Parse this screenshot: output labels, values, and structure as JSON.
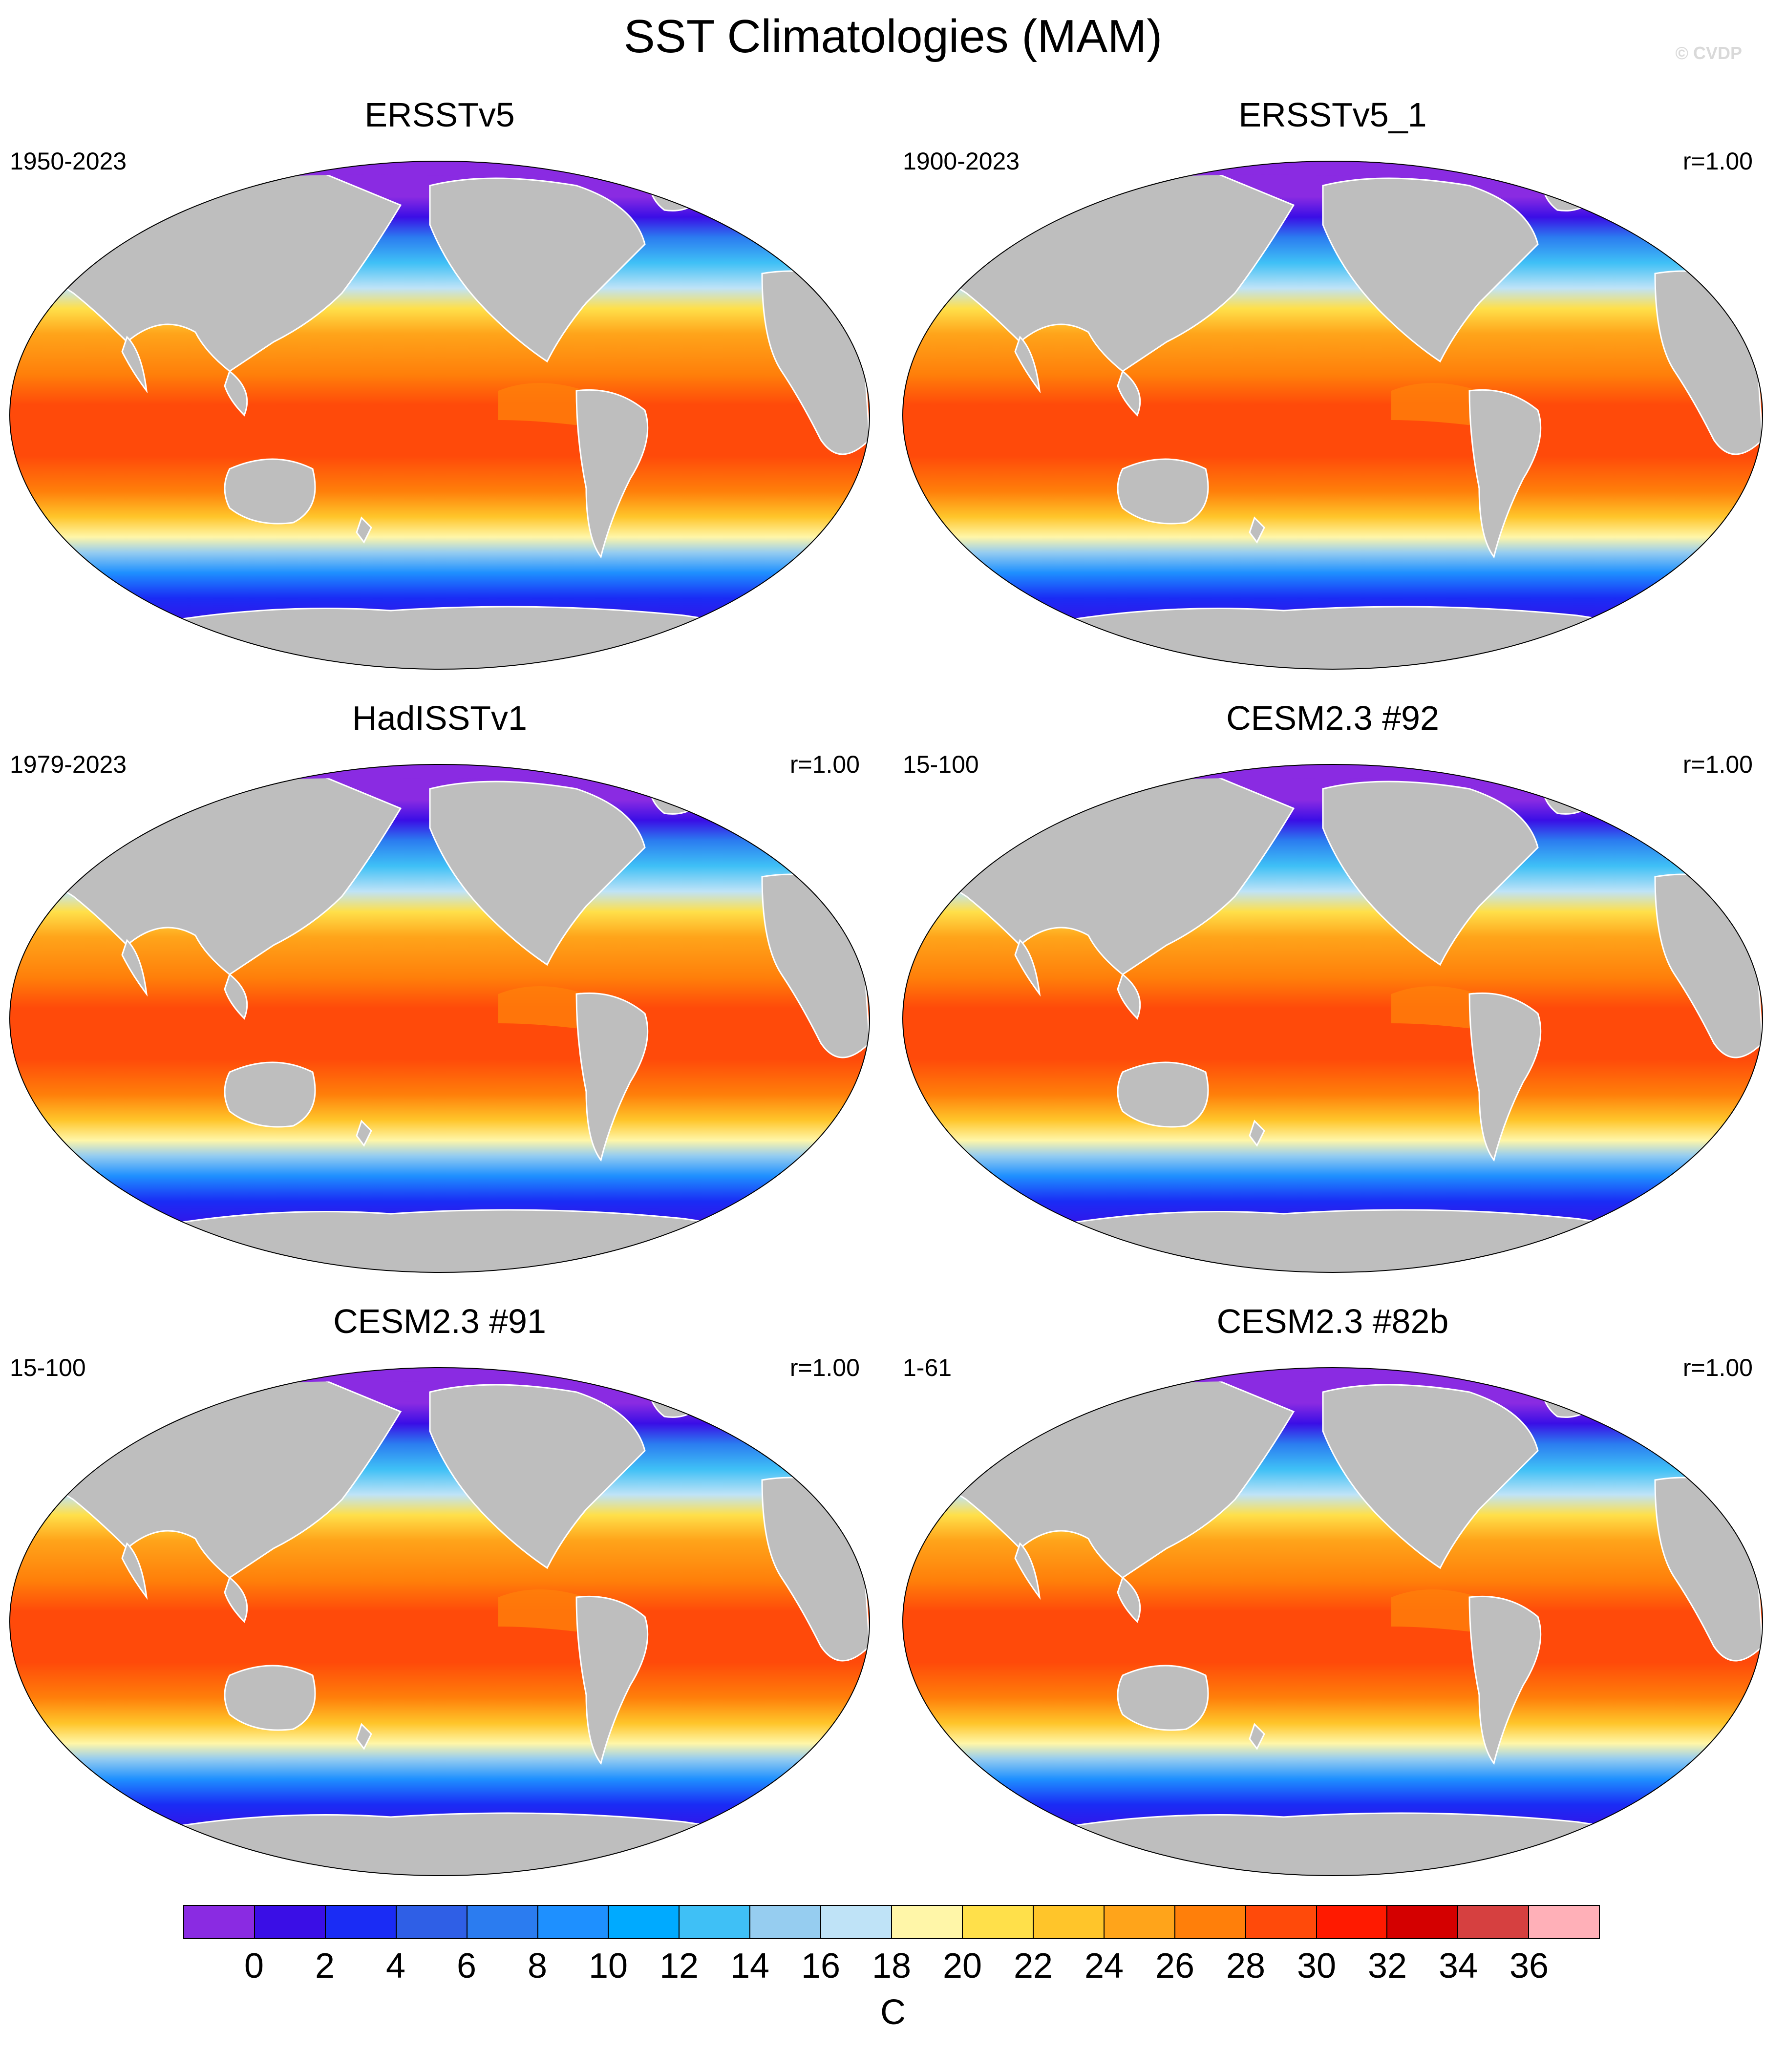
{
  "figure": {
    "title": "SST Climatologies (MAM)",
    "copyright": "© CVDP"
  },
  "panels": [
    {
      "title": "ERSSTv5",
      "years": "1950-2023",
      "corr": ""
    },
    {
      "title": "ERSSTv5_1",
      "years": "1900-2023",
      "corr": "r=1.00"
    },
    {
      "title": "HadISSTv1",
      "years": "1979-2023",
      "corr": "r=1.00"
    },
    {
      "title": "CESM2.3 #92",
      "years": "15-100",
      "corr": "r=1.00"
    },
    {
      "title": "CESM2.3 #91",
      "years": "15-100",
      "corr": "r=1.00"
    },
    {
      "title": "CESM2.3 #82b",
      "years": "1-61",
      "corr": "r=1.00"
    }
  ],
  "colorbar": {
    "unit": "C",
    "ticks": [
      "0",
      "2",
      "4",
      "6",
      "8",
      "10",
      "12",
      "14",
      "16",
      "18",
      "20",
      "22",
      "24",
      "26",
      "28",
      "30",
      "32",
      "34",
      "36"
    ],
    "colors": [
      "#8a2be2",
      "#3a0ee6",
      "#1a2cf5",
      "#2f5fe6",
      "#2b7cf0",
      "#1e90ff",
      "#00aaff",
      "#3fc0f6",
      "#96cdf0",
      "#bfe3f7",
      "#fff6a8",
      "#ffe04a",
      "#ffc52a",
      "#ffa41a",
      "#ff7f0a",
      "#ff4a0a",
      "#ff1a00",
      "#d40000",
      "#d64040",
      "#ffb0b8"
    ]
  },
  "map_style": {
    "land_color": "#bebebe",
    "coastline_color": "#ffffff"
  }
}
